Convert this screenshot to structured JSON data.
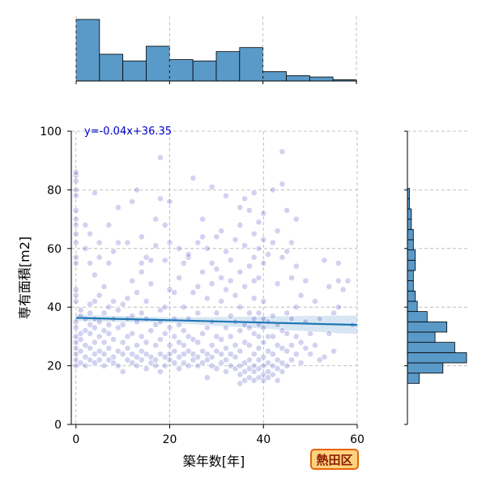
{
  "chart_data": {
    "type": "scatter",
    "xlabel": "築年数[年]",
    "ylabel": "専有面積[m2]",
    "xlim": [
      -1,
      60
    ],
    "ylim": [
      0,
      100
    ],
    "x_ticks": [
      0,
      20,
      40,
      60
    ],
    "y_ticks": [
      0,
      20,
      40,
      60,
      80,
      100
    ],
    "grid": true,
    "regression": {
      "label": "y=-0.04x+36.35",
      "slope": -0.04,
      "intercept": 36.35,
      "color": "#1f77b4",
      "band_color": "#a6c8e3"
    },
    "point_color": "#3333bb",
    "x_hist": {
      "bin_edges": [
        0,
        5,
        10,
        15,
        20,
        25,
        30,
        35,
        40,
        45,
        50,
        55,
        60
      ],
      "counts": [
        46,
        20,
        15,
        26,
        16,
        15,
        22,
        25,
        7,
        4,
        3,
        1
      ],
      "color": "#5a9ac9"
    },
    "y_hist": {
      "bin_edges": [
        14,
        17.5,
        21,
        24.5,
        28,
        31.5,
        35,
        38.5,
        42,
        45.5,
        49,
        52.5,
        56,
        59.5,
        63,
        66.5,
        70,
        73.5,
        77,
        80.5,
        84,
        87.5,
        91,
        94.5,
        98
      ],
      "counts": [
        6,
        18,
        30,
        24,
        14,
        20,
        10,
        5,
        4,
        3,
        3,
        4,
        4,
        3,
        3,
        2,
        2,
        1,
        1,
        0,
        0,
        0,
        0,
        0
      ],
      "color": "#5a9ac9"
    },
    "points": [
      [
        0,
        20
      ],
      [
        0,
        22
      ],
      [
        0,
        24
      ],
      [
        0,
        26
      ],
      [
        0,
        28
      ],
      [
        0,
        30
      ],
      [
        0,
        33
      ],
      [
        0,
        35
      ],
      [
        0,
        42
      ],
      [
        0,
        44
      ],
      [
        0,
        46
      ],
      [
        0,
        55
      ],
      [
        0,
        57
      ],
      [
        0,
        62
      ],
      [
        0,
        65
      ],
      [
        0,
        68
      ],
      [
        0,
        70
      ],
      [
        0,
        73
      ],
      [
        0,
        78
      ],
      [
        0,
        80
      ],
      [
        0,
        83
      ],
      [
        0,
        85
      ],
      [
        0,
        86
      ],
      [
        1,
        21
      ],
      [
        1,
        25
      ],
      [
        1,
        29
      ],
      [
        1,
        31
      ],
      [
        1,
        37
      ],
      [
        1,
        39
      ],
      [
        2,
        20
      ],
      [
        2,
        23
      ],
      [
        2,
        27
      ],
      [
        2,
        32
      ],
      [
        2,
        36
      ],
      [
        2,
        60
      ],
      [
        2,
        68
      ],
      [
        3,
        22
      ],
      [
        3,
        26
      ],
      [
        3,
        31
      ],
      [
        3,
        34
      ],
      [
        3,
        38
      ],
      [
        3,
        41
      ],
      [
        3,
        55
      ],
      [
        3,
        65
      ],
      [
        4,
        21
      ],
      [
        4,
        24
      ],
      [
        4,
        28
      ],
      [
        4,
        33
      ],
      [
        4,
        36
      ],
      [
        4,
        42
      ],
      [
        4,
        51
      ],
      [
        4,
        79
      ],
      [
        5,
        22
      ],
      [
        5,
        25
      ],
      [
        5,
        30
      ],
      [
        5,
        35
      ],
      [
        5,
        44
      ],
      [
        5,
        57
      ],
      [
        5,
        62
      ],
      [
        6,
        20
      ],
      [
        6,
        24
      ],
      [
        6,
        28
      ],
      [
        6,
        32
      ],
      [
        6,
        38
      ],
      [
        6,
        47
      ],
      [
        7,
        22
      ],
      [
        7,
        26
      ],
      [
        7,
        31
      ],
      [
        7,
        34
      ],
      [
        7,
        40
      ],
      [
        7,
        55
      ],
      [
        7,
        68
      ],
      [
        8,
        21
      ],
      [
        8,
        23
      ],
      [
        8,
        29
      ],
      [
        8,
        36
      ],
      [
        8,
        42
      ],
      [
        8,
        59
      ],
      [
        9,
        20
      ],
      [
        9,
        25
      ],
      [
        9,
        33
      ],
      [
        9,
        39
      ],
      [
        9,
        62
      ],
      [
        9,
        74
      ],
      [
        10,
        18
      ],
      [
        10,
        24
      ],
      [
        10,
        28
      ],
      [
        10,
        34
      ],
      [
        10,
        41
      ],
      [
        11,
        22
      ],
      [
        11,
        26
      ],
      [
        11,
        30
      ],
      [
        11,
        36
      ],
      [
        11,
        43
      ],
      [
        11,
        62
      ],
      [
        12,
        21
      ],
      [
        12,
        24
      ],
      [
        12,
        31
      ],
      [
        12,
        37
      ],
      [
        12,
        49
      ],
      [
        12,
        76
      ],
      [
        13,
        20
      ],
      [
        13,
        23
      ],
      [
        13,
        27
      ],
      [
        13,
        35
      ],
      [
        13,
        45
      ],
      [
        13,
        80
      ],
      [
        14,
        22
      ],
      [
        14,
        25
      ],
      [
        14,
        30
      ],
      [
        14,
        38
      ],
      [
        14,
        52
      ],
      [
        14,
        55
      ],
      [
        14,
        64
      ],
      [
        15,
        19
      ],
      [
        15,
        24
      ],
      [
        15,
        28
      ],
      [
        15,
        36
      ],
      [
        15,
        42
      ],
      [
        15,
        57
      ],
      [
        16,
        21
      ],
      [
        16,
        23
      ],
      [
        16,
        32
      ],
      [
        16,
        48
      ],
      [
        16,
        56
      ],
      [
        17,
        20
      ],
      [
        17,
        22
      ],
      [
        17,
        27
      ],
      [
        17,
        34
      ],
      [
        17,
        61
      ],
      [
        17,
        70
      ],
      [
        18,
        18
      ],
      [
        18,
        24
      ],
      [
        18,
        29
      ],
      [
        18,
        35
      ],
      [
        18,
        39
      ],
      [
        18,
        77
      ],
      [
        18,
        91
      ],
      [
        19,
        20
      ],
      [
        19,
        23
      ],
      [
        19,
        31
      ],
      [
        19,
        40
      ],
      [
        19,
        56
      ],
      [
        19,
        68
      ],
      [
        20,
        22
      ],
      [
        20,
        24
      ],
      [
        20,
        27
      ],
      [
        20,
        33
      ],
      [
        20,
        46
      ],
      [
        20,
        62
      ],
      [
        20,
        76
      ],
      [
        21,
        21
      ],
      [
        21,
        25
      ],
      [
        21,
        30
      ],
      [
        21,
        36
      ],
      [
        21,
        45
      ],
      [
        22,
        19
      ],
      [
        22,
        23
      ],
      [
        22,
        28
      ],
      [
        22,
        34
      ],
      [
        22,
        50
      ],
      [
        22,
        60
      ],
      [
        23,
        21
      ],
      [
        23,
        24
      ],
      [
        23,
        27
      ],
      [
        23,
        32
      ],
      [
        23,
        40
      ],
      [
        23,
        55
      ],
      [
        24,
        20
      ],
      [
        24,
        25
      ],
      [
        24,
        30
      ],
      [
        24,
        36
      ],
      [
        24,
        57
      ],
      [
        24,
        58
      ],
      [
        25,
        22
      ],
      [
        25,
        24
      ],
      [
        25,
        29
      ],
      [
        25,
        45
      ],
      [
        25,
        84
      ],
      [
        26,
        20
      ],
      [
        26,
        23
      ],
      [
        26,
        28
      ],
      [
        26,
        38
      ],
      [
        26,
        47
      ],
      [
        26,
        62
      ],
      [
        27,
        21
      ],
      [
        27,
        25
      ],
      [
        27,
        31
      ],
      [
        27,
        52
      ],
      [
        27,
        64
      ],
      [
        27,
        70
      ],
      [
        28,
        16
      ],
      [
        28,
        22
      ],
      [
        28,
        24
      ],
      [
        28,
        33
      ],
      [
        28,
        43
      ],
      [
        28,
        60
      ],
      [
        29,
        20
      ],
      [
        29,
        23
      ],
      [
        29,
        27
      ],
      [
        29,
        35
      ],
      [
        29,
        48
      ],
      [
        29,
        55
      ],
      [
        29,
        81
      ],
      [
        30,
        19
      ],
      [
        30,
        25
      ],
      [
        30,
        30
      ],
      [
        30,
        38
      ],
      [
        30,
        53
      ],
      [
        30,
        64
      ],
      [
        31,
        21
      ],
      [
        31,
        24
      ],
      [
        31,
        29
      ],
      [
        31,
        42
      ],
      [
        31,
        50
      ],
      [
        31,
        66
      ],
      [
        32,
        18
      ],
      [
        32,
        22
      ],
      [
        32,
        26
      ],
      [
        32,
        33
      ],
      [
        32,
        46
      ],
      [
        32,
        59
      ],
      [
        32,
        78
      ],
      [
        33,
        20
      ],
      [
        33,
        24
      ],
      [
        33,
        30
      ],
      [
        33,
        37
      ],
      [
        33,
        49
      ],
      [
        33,
        56
      ],
      [
        34,
        19
      ],
      [
        34,
        23
      ],
      [
        34,
        27
      ],
      [
        34,
        35
      ],
      [
        34,
        44
      ],
      [
        34,
        63
      ],
      [
        35,
        14
      ],
      [
        35,
        17
      ],
      [
        35,
        20
      ],
      [
        35,
        25
      ],
      [
        35,
        32
      ],
      [
        35,
        40
      ],
      [
        35,
        52
      ],
      [
        35,
        68
      ],
      [
        35,
        74
      ],
      [
        36,
        15
      ],
      [
        36,
        18
      ],
      [
        36,
        21
      ],
      [
        36,
        28
      ],
      [
        36,
        34
      ],
      [
        36,
        47
      ],
      [
        36,
        61
      ],
      [
        36,
        77
      ],
      [
        37,
        16
      ],
      [
        37,
        19
      ],
      [
        37,
        22
      ],
      [
        37,
        27
      ],
      [
        37,
        33
      ],
      [
        37,
        38
      ],
      [
        37,
        54
      ],
      [
        37,
        73
      ],
      [
        38,
        15
      ],
      [
        38,
        18
      ],
      [
        38,
        20
      ],
      [
        38,
        24
      ],
      [
        38,
        31
      ],
      [
        38,
        36
      ],
      [
        38,
        43
      ],
      [
        38,
        49
      ],
      [
        38,
        57
      ],
      [
        38,
        65
      ],
      [
        38,
        79
      ],
      [
        39,
        16
      ],
      [
        39,
        19
      ],
      [
        39,
        22
      ],
      [
        39,
        26
      ],
      [
        39,
        30
      ],
      [
        39,
        34
      ],
      [
        39,
        38
      ],
      [
        39,
        50
      ],
      [
        39,
        60
      ],
      [
        39,
        69
      ],
      [
        40,
        15
      ],
      [
        40,
        17
      ],
      [
        40,
        20
      ],
      [
        40,
        23
      ],
      [
        40,
        28
      ],
      [
        40,
        33
      ],
      [
        40,
        36
      ],
      [
        40,
        42
      ],
      [
        40,
        55
      ],
      [
        40,
        63
      ],
      [
        40,
        72
      ],
      [
        41,
        16
      ],
      [
        41,
        18
      ],
      [
        41,
        21
      ],
      [
        41,
        25
      ],
      [
        41,
        30
      ],
      [
        41,
        35
      ],
      [
        41,
        58
      ],
      [
        42,
        17
      ],
      [
        42,
        20
      ],
      [
        42,
        24
      ],
      [
        42,
        30
      ],
      [
        42,
        37
      ],
      [
        42,
        62
      ],
      [
        42,
        80
      ],
      [
        43,
        15
      ],
      [
        43,
        19
      ],
      [
        43,
        22
      ],
      [
        43,
        27
      ],
      [
        43,
        34
      ],
      [
        43,
        48
      ],
      [
        43,
        66
      ],
      [
        44,
        18
      ],
      [
        44,
        21
      ],
      [
        44,
        26
      ],
      [
        44,
        32
      ],
      [
        44,
        57
      ],
      [
        44,
        82
      ],
      [
        44,
        93
      ],
      [
        45,
        20
      ],
      [
        45,
        25
      ],
      [
        45,
        31
      ],
      [
        45,
        38
      ],
      [
        45,
        59
      ],
      [
        45,
        73
      ],
      [
        46,
        22
      ],
      [
        46,
        27
      ],
      [
        46,
        36
      ],
      [
        46,
        50
      ],
      [
        46,
        62
      ],
      [
        47,
        24
      ],
      [
        47,
        30
      ],
      [
        47,
        40
      ],
      [
        47,
        54
      ],
      [
        47,
        70
      ],
      [
        48,
        21
      ],
      [
        48,
        28
      ],
      [
        48,
        44
      ],
      [
        49,
        26
      ],
      [
        49,
        35
      ],
      [
        49,
        49
      ],
      [
        50,
        24
      ],
      [
        50,
        31
      ],
      [
        51,
        27
      ],
      [
        51,
        42
      ],
      [
        52,
        22
      ],
      [
        52,
        36
      ],
      [
        53,
        56
      ],
      [
        53,
        23
      ],
      [
        54,
        31
      ],
      [
        54,
        47
      ],
      [
        55,
        25
      ],
      [
        55,
        38
      ],
      [
        56,
        40
      ],
      [
        56,
        49
      ],
      [
        56,
        55
      ],
      [
        57,
        46
      ],
      [
        58,
        49
      ],
      [
        59,
        34
      ]
    ]
  },
  "badge_label": "熱田区"
}
